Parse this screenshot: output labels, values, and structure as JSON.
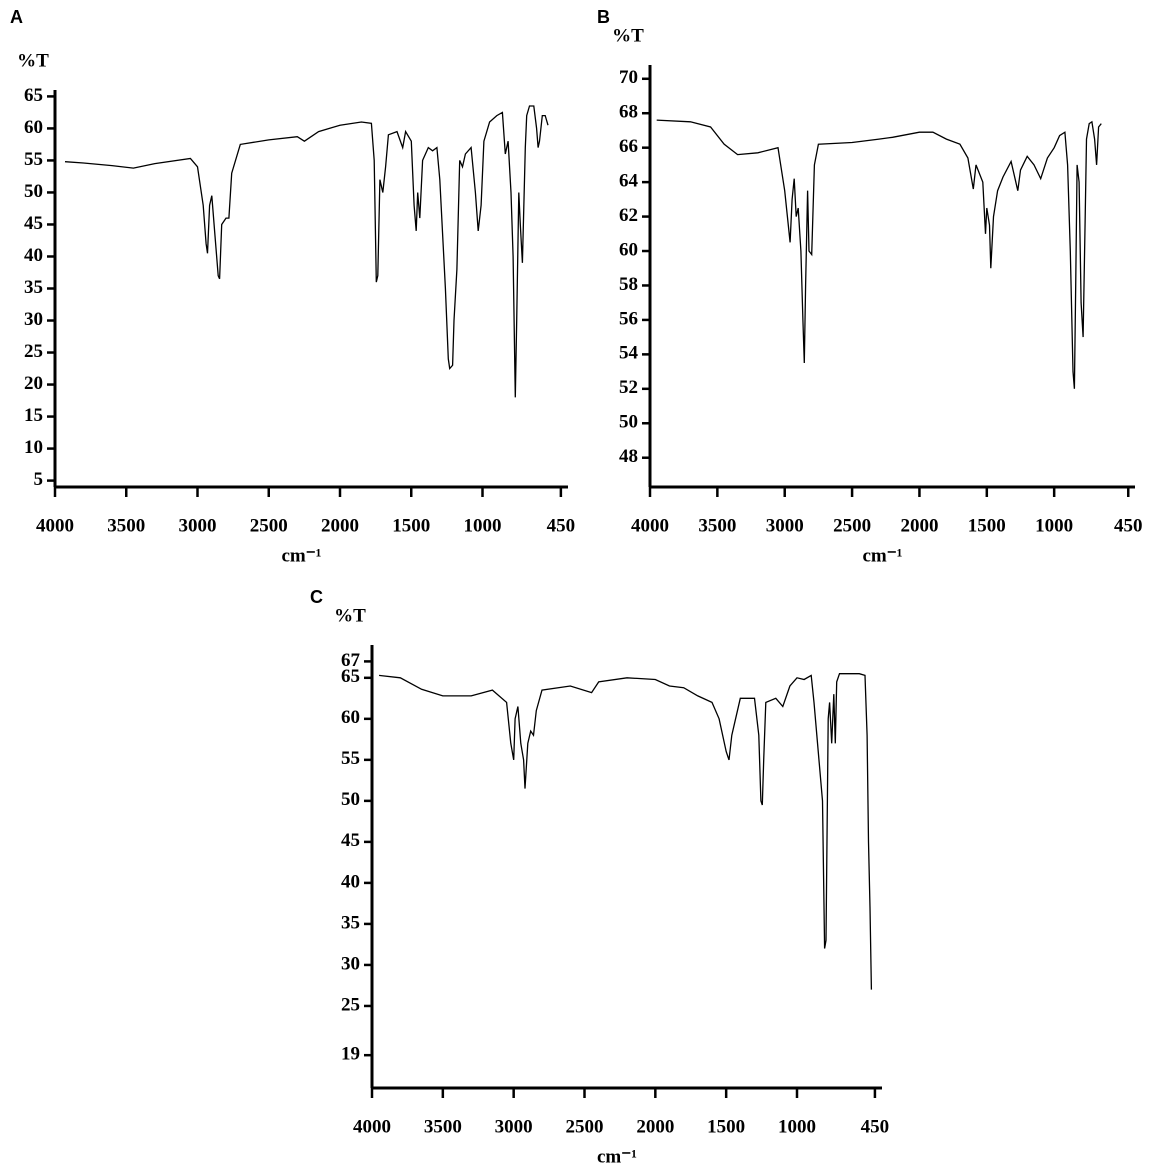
{
  "chart_data": [
    {
      "type": "line",
      "panel_label": "A",
      "ylabel": "%T",
      "xlabel": "cm⁻¹",
      "xlim": [
        4000,
        400
      ],
      "xticks": [
        4000,
        3500,
        3000,
        2500,
        2000,
        1500,
        1000,
        450
      ],
      "ylim": [
        4,
        66
      ],
      "yticks": [
        65,
        60,
        55,
        50,
        45,
        40,
        35,
        30,
        25,
        20,
        15,
        10,
        5
      ],
      "x": [
        3930,
        3800,
        3600,
        3450,
        3300,
        3050,
        3000,
        2960,
        2940,
        2930,
        2915,
        2900,
        2880,
        2855,
        2845,
        2830,
        2800,
        2780,
        2760,
        2700,
        2500,
        2300,
        2250,
        2150,
        2000,
        1850,
        1780,
        1760,
        1745,
        1735,
        1720,
        1700,
        1680,
        1660,
        1600,
        1560,
        1540,
        1500,
        1480,
        1465,
        1455,
        1440,
        1420,
        1380,
        1350,
        1320,
        1300,
        1260,
        1240,
        1230,
        1210,
        1200,
        1180,
        1160,
        1140,
        1120,
        1080,
        1050,
        1030,
        1010,
        990,
        950,
        900,
        860,
        840,
        820,
        800,
        785,
        770,
        760,
        745,
        735,
        720,
        700,
        690,
        670,
        640,
        620,
        610,
        600,
        580,
        560,
        540
      ],
      "series": [
        {
          "color": "#000000",
          "values": [
            54.8,
            54.6,
            54.2,
            53.8,
            54.5,
            55.3,
            54,
            48,
            42,
            40.5,
            48,
            49.5,
            44,
            37,
            36.5,
            45,
            46,
            46,
            53,
            57.5,
            58.2,
            58.7,
            58,
            59.5,
            60.5,
            61,
            60.8,
            55,
            36,
            37,
            52,
            50,
            54,
            59,
            59.5,
            57,
            59.5,
            58,
            48,
            44,
            50,
            46,
            55,
            57,
            56.5,
            57,
            52,
            35,
            24,
            22.5,
            23,
            30,
            38,
            55,
            54,
            56,
            57,
            50,
            44,
            48,
            58,
            61,
            62,
            62.5,
            56,
            58,
            50,
            40,
            18,
            30,
            50,
            45,
            39,
            57,
            62,
            63.5,
            63.5,
            60,
            57,
            58,
            62,
            62,
            60.5
          ]
        }
      ]
    },
    {
      "type": "line",
      "panel_label": "B",
      "ylabel": "%T",
      "xlabel": "cm⁻¹",
      "xlim": [
        4000,
        400
      ],
      "xticks": [
        4000,
        3500,
        3000,
        2500,
        2000,
        1500,
        1000,
        450
      ],
      "ylim": [
        46.3,
        70.8
      ],
      "yticks": [
        70,
        68,
        66,
        64,
        62,
        60,
        58,
        56,
        54,
        52,
        50,
        48
      ],
      "x": [
        3950,
        3700,
        3550,
        3450,
        3350,
        3200,
        3050,
        3000,
        2980,
        2960,
        2945,
        2930,
        2915,
        2900,
        2880,
        2865,
        2855,
        2845,
        2830,
        2820,
        2800,
        2780,
        2750,
        2500,
        2300,
        2200,
        2000,
        1900,
        1800,
        1700,
        1640,
        1600,
        1580,
        1530,
        1510,
        1500,
        1480,
        1470,
        1450,
        1420,
        1380,
        1320,
        1270,
        1250,
        1200,
        1150,
        1100,
        1050,
        1000,
        960,
        920,
        900,
        880,
        860,
        850,
        840,
        830,
        815,
        800,
        785,
        770,
        760,
        740,
        720,
        700,
        685,
        670,
        650
      ],
      "series": [
        {
          "color": "#000000",
          "values": [
            67.6,
            67.5,
            67.2,
            66.2,
            65.6,
            65.7,
            66,
            63.5,
            62,
            60.5,
            63,
            64.2,
            62,
            62.5,
            60,
            56,
            53.5,
            58,
            63.5,
            60,
            59.8,
            65,
            66.2,
            66.3,
            66.5,
            66.6,
            66.9,
            66.9,
            66.5,
            66.2,
            65.4,
            63.6,
            65,
            64,
            61,
            62.5,
            61.5,
            59,
            62,
            63.5,
            64.3,
            65.2,
            63.5,
            64.7,
            65.5,
            65,
            64.2,
            65.4,
            66,
            66.7,
            66.9,
            65,
            60,
            53,
            52,
            58,
            65,
            64,
            57,
            55,
            62,
            66.5,
            67.4,
            67.5,
            66.5,
            65,
            67.2,
            67.4
          ]
        }
      ]
    },
    {
      "type": "line",
      "panel_label": "C",
      "ylabel": "%T",
      "xlabel": "cm⁻¹",
      "xlim": [
        4000,
        400
      ],
      "xticks": [
        4000,
        3500,
        3000,
        2500,
        2000,
        1500,
        1000,
        450
      ],
      "ylim": [
        15,
        69
      ],
      "yticks": [
        67,
        65,
        60,
        55,
        50,
        45,
        40,
        35,
        30,
        25,
        19
      ],
      "x": [
        3950,
        3800,
        3650,
        3500,
        3300,
        3150,
        3050,
        3020,
        3000,
        2990,
        2970,
        2950,
        2930,
        2920,
        2900,
        2880,
        2860,
        2840,
        2800,
        2600,
        2450,
        2400,
        2200,
        2000,
        1900,
        1800,
        1700,
        1600,
        1550,
        1500,
        1480,
        1460,
        1400,
        1300,
        1270,
        1255,
        1245,
        1235,
        1220,
        1150,
        1100,
        1050,
        1000,
        950,
        900,
        880,
        820,
        805,
        795,
        780,
        770,
        755,
        740,
        730,
        720,
        700,
        560,
        520,
        505,
        495,
        485,
        475
      ],
      "series": [
        {
          "color": "#000000",
          "values": [
            65.3,
            65,
            63.6,
            62.8,
            62.8,
            63.5,
            62,
            57,
            55,
            60,
            61.5,
            57,
            55,
            51.5,
            57,
            58.5,
            58,
            61,
            63.5,
            64,
            63.2,
            64.5,
            65,
            64.8,
            64,
            63.8,
            62.8,
            62,
            60,
            56,
            55,
            58,
            62.5,
            62.5,
            58,
            50,
            49.5,
            55,
            62,
            62.5,
            61.5,
            64,
            65,
            64.8,
            65.3,
            62,
            50,
            32,
            33,
            60,
            62,
            57,
            63,
            57,
            64.5,
            65.5,
            65.5,
            65.3,
            58,
            45,
            37,
            27
          ]
        }
      ]
    }
  ]
}
